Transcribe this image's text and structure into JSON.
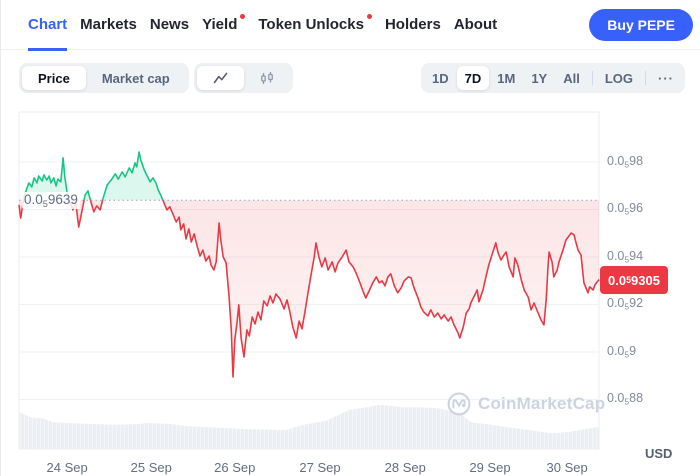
{
  "nav": {
    "items": [
      {
        "label": "Chart",
        "active": true,
        "dot": false
      },
      {
        "label": "Markets",
        "active": false,
        "dot": false
      },
      {
        "label": "News",
        "active": false,
        "dot": false
      },
      {
        "label": "Yield",
        "active": false,
        "dot": true
      },
      {
        "label": "Token Unlocks",
        "active": false,
        "dot": true
      },
      {
        "label": "Holders",
        "active": false,
        "dot": false
      },
      {
        "label": "About",
        "active": false,
        "dot": false
      }
    ],
    "buy_button": "Buy PEPE"
  },
  "toolbar": {
    "metric_toggle": {
      "options": [
        "Price",
        "Market cap"
      ],
      "active": "Price"
    },
    "chart_type_toggle": {
      "options": [
        "line-chart-icon",
        "candlestick-icon"
      ],
      "active": "line-chart-icon"
    },
    "ranges": {
      "options": [
        "1D",
        "7D",
        "1M",
        "1Y",
        "All"
      ],
      "active": "7D",
      "log_label": "LOG",
      "more_label": "···"
    }
  },
  "chart_data": {
    "type": "line",
    "title": "Price 7D",
    "unit_label": "USD",
    "price_unit": "1e-7 USD (label 0.0sub5 9639 = $0.0000009639)",
    "baseline": {
      "value": 9.639,
      "label": {
        "pre": "0.0",
        "sub": "5",
        "post": "9639"
      }
    },
    "current": {
      "value": 9.305,
      "label": {
        "pre": "0.0",
        "sub": "5",
        "post": "9305"
      }
    },
    "colors": {
      "up": "#16c784",
      "down": "#ea3943",
      "accent": "#3861fb",
      "grid": "#eef1f5",
      "baseline_dots": "#9aa5b8",
      "volume": "#ebeef3"
    },
    "y_axis": {
      "ticks": [
        {
          "value": 9.8,
          "label": {
            "pre": "0.0",
            "sub": "5",
            "post": "98"
          }
        },
        {
          "value": 9.6,
          "label": {
            "pre": "0.0",
            "sub": "5",
            "post": "96"
          }
        },
        {
          "value": 9.4,
          "label": {
            "pre": "0.0",
            "sub": "5",
            "post": "94"
          }
        },
        {
          "value": 9.2,
          "label": {
            "pre": "0.0",
            "sub": "5",
            "post": "92"
          }
        },
        {
          "value": 9.0,
          "label": {
            "pre": "0.0",
            "sub": "5",
            "post": "9"
          }
        },
        {
          "value": 8.8,
          "label": {
            "pre": "0.0",
            "sub": "5",
            "post": "88"
          }
        }
      ]
    },
    "x_ticks": [
      {
        "label": "24 Sep",
        "xf": 0.083
      },
      {
        "label": "25 Sep",
        "xf": 0.228
      },
      {
        "label": "26 Sep",
        "xf": 0.372
      },
      {
        "label": "27 Sep",
        "xf": 0.519
      },
      {
        "label": "28 Sep",
        "xf": 0.666
      },
      {
        "label": "29 Sep",
        "xf": 0.812
      },
      {
        "label": "30 Sep",
        "xf": 0.945
      }
    ],
    "series": {
      "name": "PEPE price",
      "points": [
        [
          0.0,
          9.619
        ],
        [
          0.003,
          9.564
        ],
        [
          0.009,
          9.657
        ],
        [
          0.014,
          9.691
        ],
        [
          0.017,
          9.712
        ],
        [
          0.022,
          9.695
        ],
        [
          0.026,
          9.733
        ],
        [
          0.031,
          9.712
        ],
        [
          0.034,
          9.741
        ],
        [
          0.04,
          9.72
        ],
        [
          0.043,
          9.745
        ],
        [
          0.048,
          9.724
        ],
        [
          0.052,
          9.741
        ],
        [
          0.055,
          9.712
        ],
        [
          0.06,
          9.733
        ],
        [
          0.064,
          9.699
        ],
        [
          0.067,
          9.728
        ],
        [
          0.072,
          9.716
        ],
        [
          0.076,
          9.817
        ],
        [
          0.079,
          9.737
        ],
        [
          0.084,
          9.653
        ],
        [
          0.09,
          9.619
        ],
        [
          0.093,
          9.598
        ],
        [
          0.098,
          9.627
        ],
        [
          0.103,
          9.526
        ],
        [
          0.109,
          9.598
        ],
        [
          0.114,
          9.661
        ],
        [
          0.119,
          9.678
        ],
        [
          0.124,
          9.632
        ],
        [
          0.129,
          9.59
        ],
        [
          0.134,
          9.615
        ],
        [
          0.14,
          9.598
        ],
        [
          0.145,
          9.648
        ],
        [
          0.152,
          9.703
        ],
        [
          0.159,
          9.724
        ],
        [
          0.166,
          9.75
        ],
        [
          0.171,
          9.728
        ],
        [
          0.178,
          9.758
        ],
        [
          0.183,
          9.737
        ],
        [
          0.19,
          9.775
        ],
        [
          0.195,
          9.754
        ],
        [
          0.2,
          9.796
        ],
        [
          0.203,
          9.779
        ],
        [
          0.207,
          9.842
        ],
        [
          0.21,
          9.808
        ],
        [
          0.216,
          9.766
        ],
        [
          0.221,
          9.741
        ],
        [
          0.226,
          9.716
        ],
        [
          0.231,
          9.733
        ],
        [
          0.236,
          9.712
        ],
        [
          0.24,
          9.682
        ],
        [
          0.245,
          9.657
        ],
        [
          0.25,
          9.627
        ],
        [
          0.255,
          9.598
        ],
        [
          0.26,
          9.611
        ],
        [
          0.266,
          9.577
        ],
        [
          0.271,
          9.547
        ],
        [
          0.276,
          9.568
        ],
        [
          0.279,
          9.514
        ],
        [
          0.284,
          9.539
        ],
        [
          0.288,
          9.476
        ],
        [
          0.293,
          9.518
        ],
        [
          0.297,
          9.463
        ],
        [
          0.302,
          9.497
        ],
        [
          0.307,
          9.446
        ],
        [
          0.312,
          9.404
        ],
        [
          0.317,
          9.429
        ],
        [
          0.322,
          9.383
        ],
        [
          0.328,
          9.404
        ],
        [
          0.331,
          9.366
        ],
        [
          0.336,
          9.345
        ],
        [
          0.34,
          9.379
        ],
        [
          0.345,
          9.543
        ],
        [
          0.348,
          9.471
        ],
        [
          0.352,
          9.4
        ],
        [
          0.357,
          9.375
        ],
        [
          0.362,
          9.236
        ],
        [
          0.366,
          9.093
        ],
        [
          0.369,
          8.895
        ],
        [
          0.372,
          9.051
        ],
        [
          0.376,
          9.126
        ],
        [
          0.379,
          9.198
        ],
        [
          0.383,
          9.059
        ],
        [
          0.388,
          8.979
        ],
        [
          0.393,
          9.093
        ],
        [
          0.397,
          9.067
        ],
        [
          0.402,
          9.147
        ],
        [
          0.407,
          9.118
        ],
        [
          0.412,
          9.168
        ],
        [
          0.417,
          9.135
        ],
        [
          0.422,
          9.215
        ],
        [
          0.428,
          9.194
        ],
        [
          0.433,
          9.236
        ],
        [
          0.438,
          9.206
        ],
        [
          0.443,
          9.244
        ],
        [
          0.45,
          9.223
        ],
        [
          0.457,
          9.181
        ],
        [
          0.462,
          9.219
        ],
        [
          0.467,
          9.168
        ],
        [
          0.472,
          9.105
        ],
        [
          0.478,
          9.059
        ],
        [
          0.483,
          9.13
        ],
        [
          0.488,
          9.097
        ],
        [
          0.493,
          9.168
        ],
        [
          0.498,
          9.244
        ],
        [
          0.503,
          9.316
        ],
        [
          0.509,
          9.4
        ],
        [
          0.512,
          9.459
        ],
        [
          0.517,
          9.4
        ],
        [
          0.522,
          9.358
        ],
        [
          0.528,
          9.396
        ],
        [
          0.533,
          9.345
        ],
        [
          0.54,
          9.379
        ],
        [
          0.545,
          9.337
        ],
        [
          0.55,
          9.375
        ],
        [
          0.557,
          9.4
        ],
        [
          0.564,
          9.429
        ],
        [
          0.569,
          9.379
        ],
        [
          0.576,
          9.358
        ],
        [
          0.581,
          9.333
        ],
        [
          0.586,
          9.303
        ],
        [
          0.593,
          9.257
        ],
        [
          0.598,
          9.227
        ],
        [
          0.603,
          9.253
        ],
        [
          0.61,
          9.291
        ],
        [
          0.616,
          9.316
        ],
        [
          0.621,
          9.291
        ],
        [
          0.626,
          9.299
        ],
        [
          0.631,
          9.278
        ],
        [
          0.636,
          9.316
        ],
        [
          0.641,
          9.329
        ],
        [
          0.647,
          9.278
        ],
        [
          0.653,
          9.249
        ],
        [
          0.659,
          9.27
        ],
        [
          0.664,
          9.299
        ],
        [
          0.671,
          9.316
        ],
        [
          0.676,
          9.312
        ],
        [
          0.681,
          9.27
        ],
        [
          0.688,
          9.227
        ],
        [
          0.693,
          9.189
        ],
        [
          0.698,
          9.168
        ],
        [
          0.705,
          9.152
        ],
        [
          0.71,
          9.177
        ],
        [
          0.716,
          9.147
        ],
        [
          0.722,
          9.164
        ],
        [
          0.728,
          9.139
        ],
        [
          0.733,
          9.156
        ],
        [
          0.74,
          9.13
        ],
        [
          0.745,
          9.147
        ],
        [
          0.75,
          9.114
        ],
        [
          0.757,
          9.08
        ],
        [
          0.76,
          9.059
        ],
        [
          0.766,
          9.105
        ],
        [
          0.771,
          9.164
        ],
        [
          0.776,
          9.181
        ],
        [
          0.779,
          9.206
        ],
        [
          0.784,
          9.231
        ],
        [
          0.79,
          9.261
        ],
        [
          0.793,
          9.211
        ],
        [
          0.8,
          9.261
        ],
        [
          0.805,
          9.316
        ],
        [
          0.81,
          9.366
        ],
        [
          0.817,
          9.421
        ],
        [
          0.822,
          9.459
        ],
        [
          0.826,
          9.417
        ],
        [
          0.831,
          9.387
        ],
        [
          0.836,
          9.408
        ],
        [
          0.84,
          9.421
        ],
        [
          0.845,
          9.358
        ],
        [
          0.852,
          9.316
        ],
        [
          0.855,
          9.396
        ],
        [
          0.86,
          9.366
        ],
        [
          0.866,
          9.303
        ],
        [
          0.871,
          9.261
        ],
        [
          0.878,
          9.231
        ],
        [
          0.883,
          9.177
        ],
        [
          0.888,
          9.206
        ],
        [
          0.895,
          9.164
        ],
        [
          0.9,
          9.135
        ],
        [
          0.905,
          9.114
        ],
        [
          0.909,
          9.219
        ],
        [
          0.912,
          9.358
        ],
        [
          0.914,
          9.421
        ],
        [
          0.919,
          9.379
        ],
        [
          0.922,
          9.316
        ],
        [
          0.928,
          9.345
        ],
        [
          0.931,
          9.379
        ],
        [
          0.938,
          9.429
        ],
        [
          0.943,
          9.471
        ],
        [
          0.952,
          9.501
        ],
        [
          0.957,
          9.493
        ],
        [
          0.96,
          9.463
        ],
        [
          0.964,
          9.429
        ],
        [
          0.969,
          9.408
        ],
        [
          0.974,
          9.291
        ],
        [
          0.981,
          9.249
        ],
        [
          0.984,
          9.274
        ],
        [
          0.99,
          9.261
        ],
        [
          0.993,
          9.282
        ],
        [
          1.0,
          9.305
        ]
      ]
    },
    "volume_profile": {
      "note": "relative volume height 0..1 across the window",
      "points": [
        [
          0.0,
          0.84
        ],
        [
          0.02,
          0.72
        ],
        [
          0.04,
          0.7
        ],
        [
          0.06,
          0.61
        ],
        [
          0.08,
          0.59
        ],
        [
          0.12,
          0.57
        ],
        [
          0.17,
          0.55
        ],
        [
          0.21,
          0.57
        ],
        [
          0.22,
          0.59
        ],
        [
          0.26,
          0.57
        ],
        [
          0.29,
          0.52
        ],
        [
          0.35,
          0.48
        ],
        [
          0.4,
          0.45
        ],
        [
          0.46,
          0.43
        ],
        [
          0.49,
          0.55
        ],
        [
          0.5,
          0.57
        ],
        [
          0.53,
          0.64
        ],
        [
          0.55,
          0.77
        ],
        [
          0.57,
          0.89
        ],
        [
          0.6,
          0.95
        ],
        [
          0.62,
          1.0
        ],
        [
          0.64,
          0.98
        ],
        [
          0.66,
          0.95
        ],
        [
          0.69,
          0.95
        ],
        [
          0.72,
          0.93
        ],
        [
          0.76,
          0.82
        ],
        [
          0.78,
          0.61
        ],
        [
          0.815,
          0.55
        ],
        [
          0.85,
          0.48
        ],
        [
          0.9,
          0.39
        ],
        [
          0.92,
          0.36
        ],
        [
          0.95,
          0.39
        ],
        [
          0.975,
          0.45
        ],
        [
          1.0,
          0.5
        ]
      ]
    },
    "watermark": "CoinMarketCap"
  }
}
